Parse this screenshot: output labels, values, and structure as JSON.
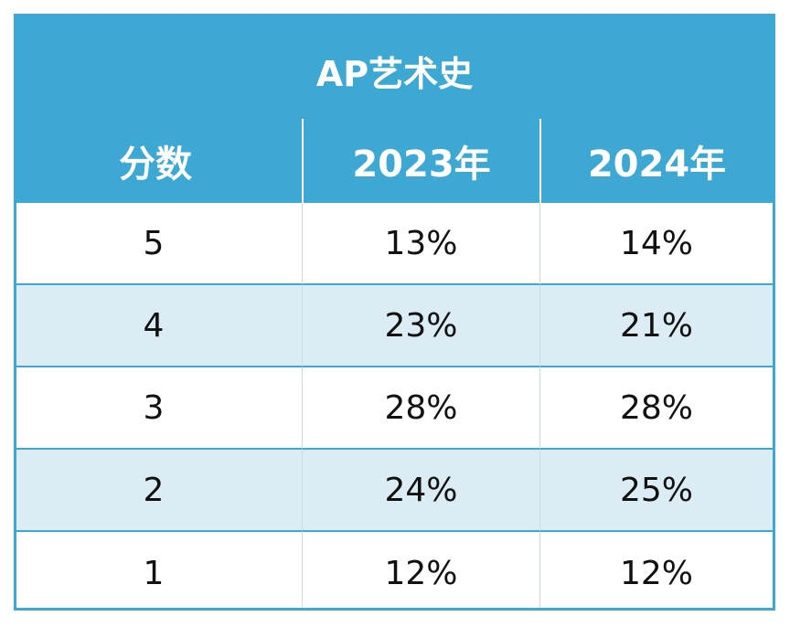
{
  "chart_data": {
    "type": "table",
    "title": "AP艺术史",
    "columns": [
      "分数",
      "2023年",
      "2024年"
    ],
    "rows": [
      [
        "5",
        "13%",
        "14%"
      ],
      [
        "4",
        "23%",
        "21%"
      ],
      [
        "3",
        "28%",
        "28%"
      ],
      [
        "2",
        "24%",
        "25%"
      ],
      [
        "1",
        "12%",
        "12%"
      ]
    ]
  },
  "colors": {
    "header_bg": "#3ea8d4",
    "header_text": "#ffffff",
    "alt_row_bg": "#dcecf5",
    "row_bg": "#ffffff",
    "border": "#3ea8d4"
  }
}
